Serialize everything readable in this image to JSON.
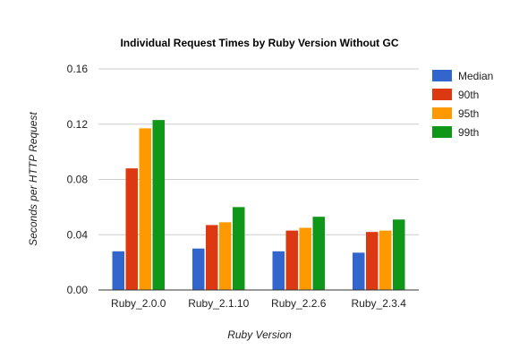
{
  "chart_data": {
    "type": "bar",
    "title": "Individual Request Times by Ruby Version Without GC",
    "xlabel": "Ruby Version",
    "ylabel": "Seconds per HTTP Request",
    "ylim": [
      0,
      0.16
    ],
    "y_ticks": [
      "0.00",
      "0.04",
      "0.08",
      "0.12",
      "0.16"
    ],
    "grid": true,
    "legend_position": "right",
    "categories": [
      "Ruby_2.0.0",
      "Ruby_2.1.10",
      "Ruby_2.2.6",
      "Ruby_2.3.4"
    ],
    "series": [
      {
        "name": "Median",
        "color": "#3366cc",
        "values": [
          0.028,
          0.03,
          0.028,
          0.027
        ]
      },
      {
        "name": "90th",
        "color": "#dc3912",
        "values": [
          0.088,
          0.047,
          0.043,
          0.042
        ]
      },
      {
        "name": "95th",
        "color": "#ff9900",
        "values": [
          0.117,
          0.049,
          0.045,
          0.043
        ]
      },
      {
        "name": "99th",
        "color": "#109618",
        "values": [
          0.123,
          0.06,
          0.053,
          0.051
        ]
      }
    ]
  }
}
